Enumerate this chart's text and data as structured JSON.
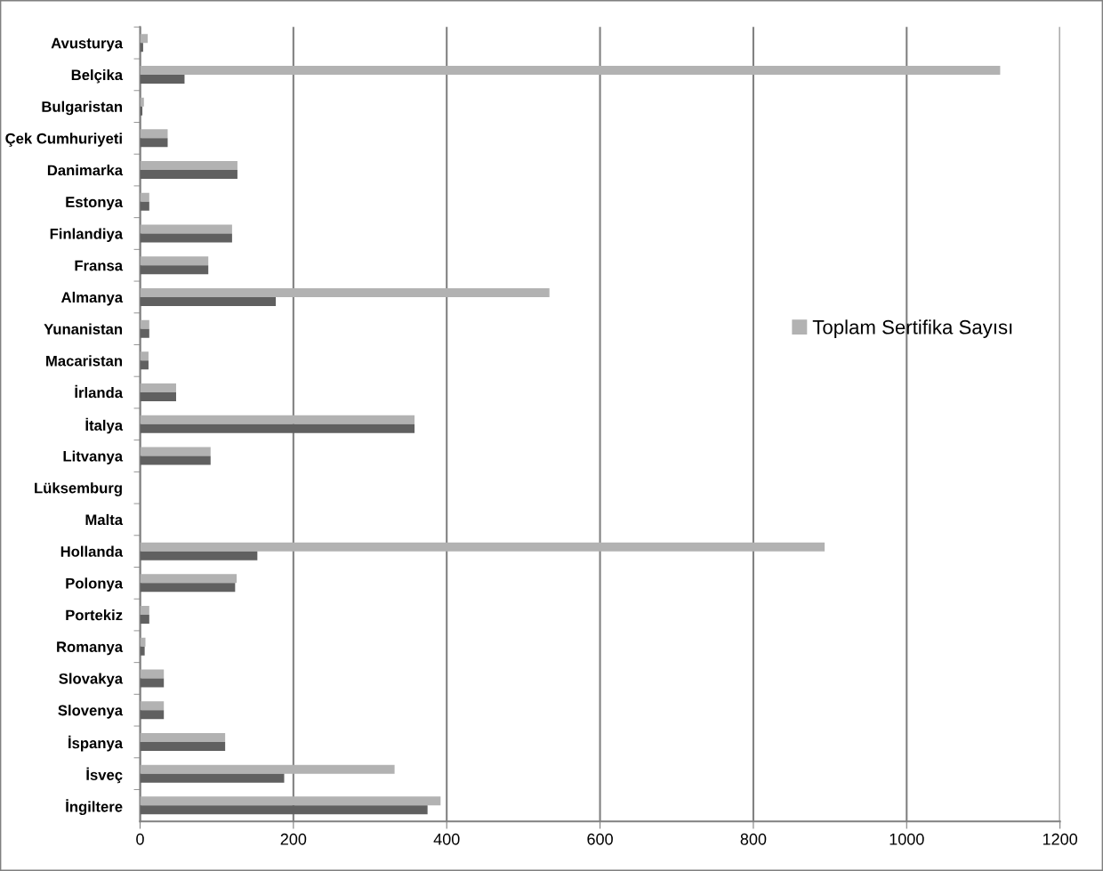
{
  "chart_data": {
    "type": "bar",
    "orientation": "horizontal",
    "categories": [
      "Avusturya",
      "Belçika",
      "Bulgaristan",
      "Çek Cumhuriyeti",
      "Danimarka",
      "Estonya",
      "Finlandiya",
      "Fransa",
      "Almanya",
      "Yunanistan",
      "Macaristan",
      "İrlanda",
      "İtalya",
      "Litvanya",
      "Lüksemburg",
      "Malta",
      "Hollanda",
      "Polonya",
      "Portekiz",
      "Romanya",
      "Slovakya",
      "Slovenya",
      "İspanya",
      "İsveç",
      "İngiltere"
    ],
    "series": [
      {
        "name": "Toplam Sertifika Sayısı",
        "color": "#b2b2b2",
        "values": [
          10,
          1122,
          5,
          36,
          127,
          12,
          120,
          89,
          534,
          12,
          11,
          47,
          358,
          92,
          null,
          0,
          893,
          126,
          12,
          7,
          31,
          31,
          111,
          332,
          392
        ]
      },
      {
        "color": "#606060",
        "values": [
          4,
          58,
          3,
          36,
          127,
          12,
          120,
          89,
          177,
          12,
          11,
          47,
          358,
          92,
          null,
          0,
          153,
          124,
          12,
          6,
          31,
          31,
          111,
          188,
          375
        ]
      }
    ],
    "xlim": [
      0,
      1200
    ],
    "xticks": [
      0,
      200,
      400,
      600,
      800,
      1000,
      1200
    ],
    "grid": "x",
    "legend": "right"
  }
}
